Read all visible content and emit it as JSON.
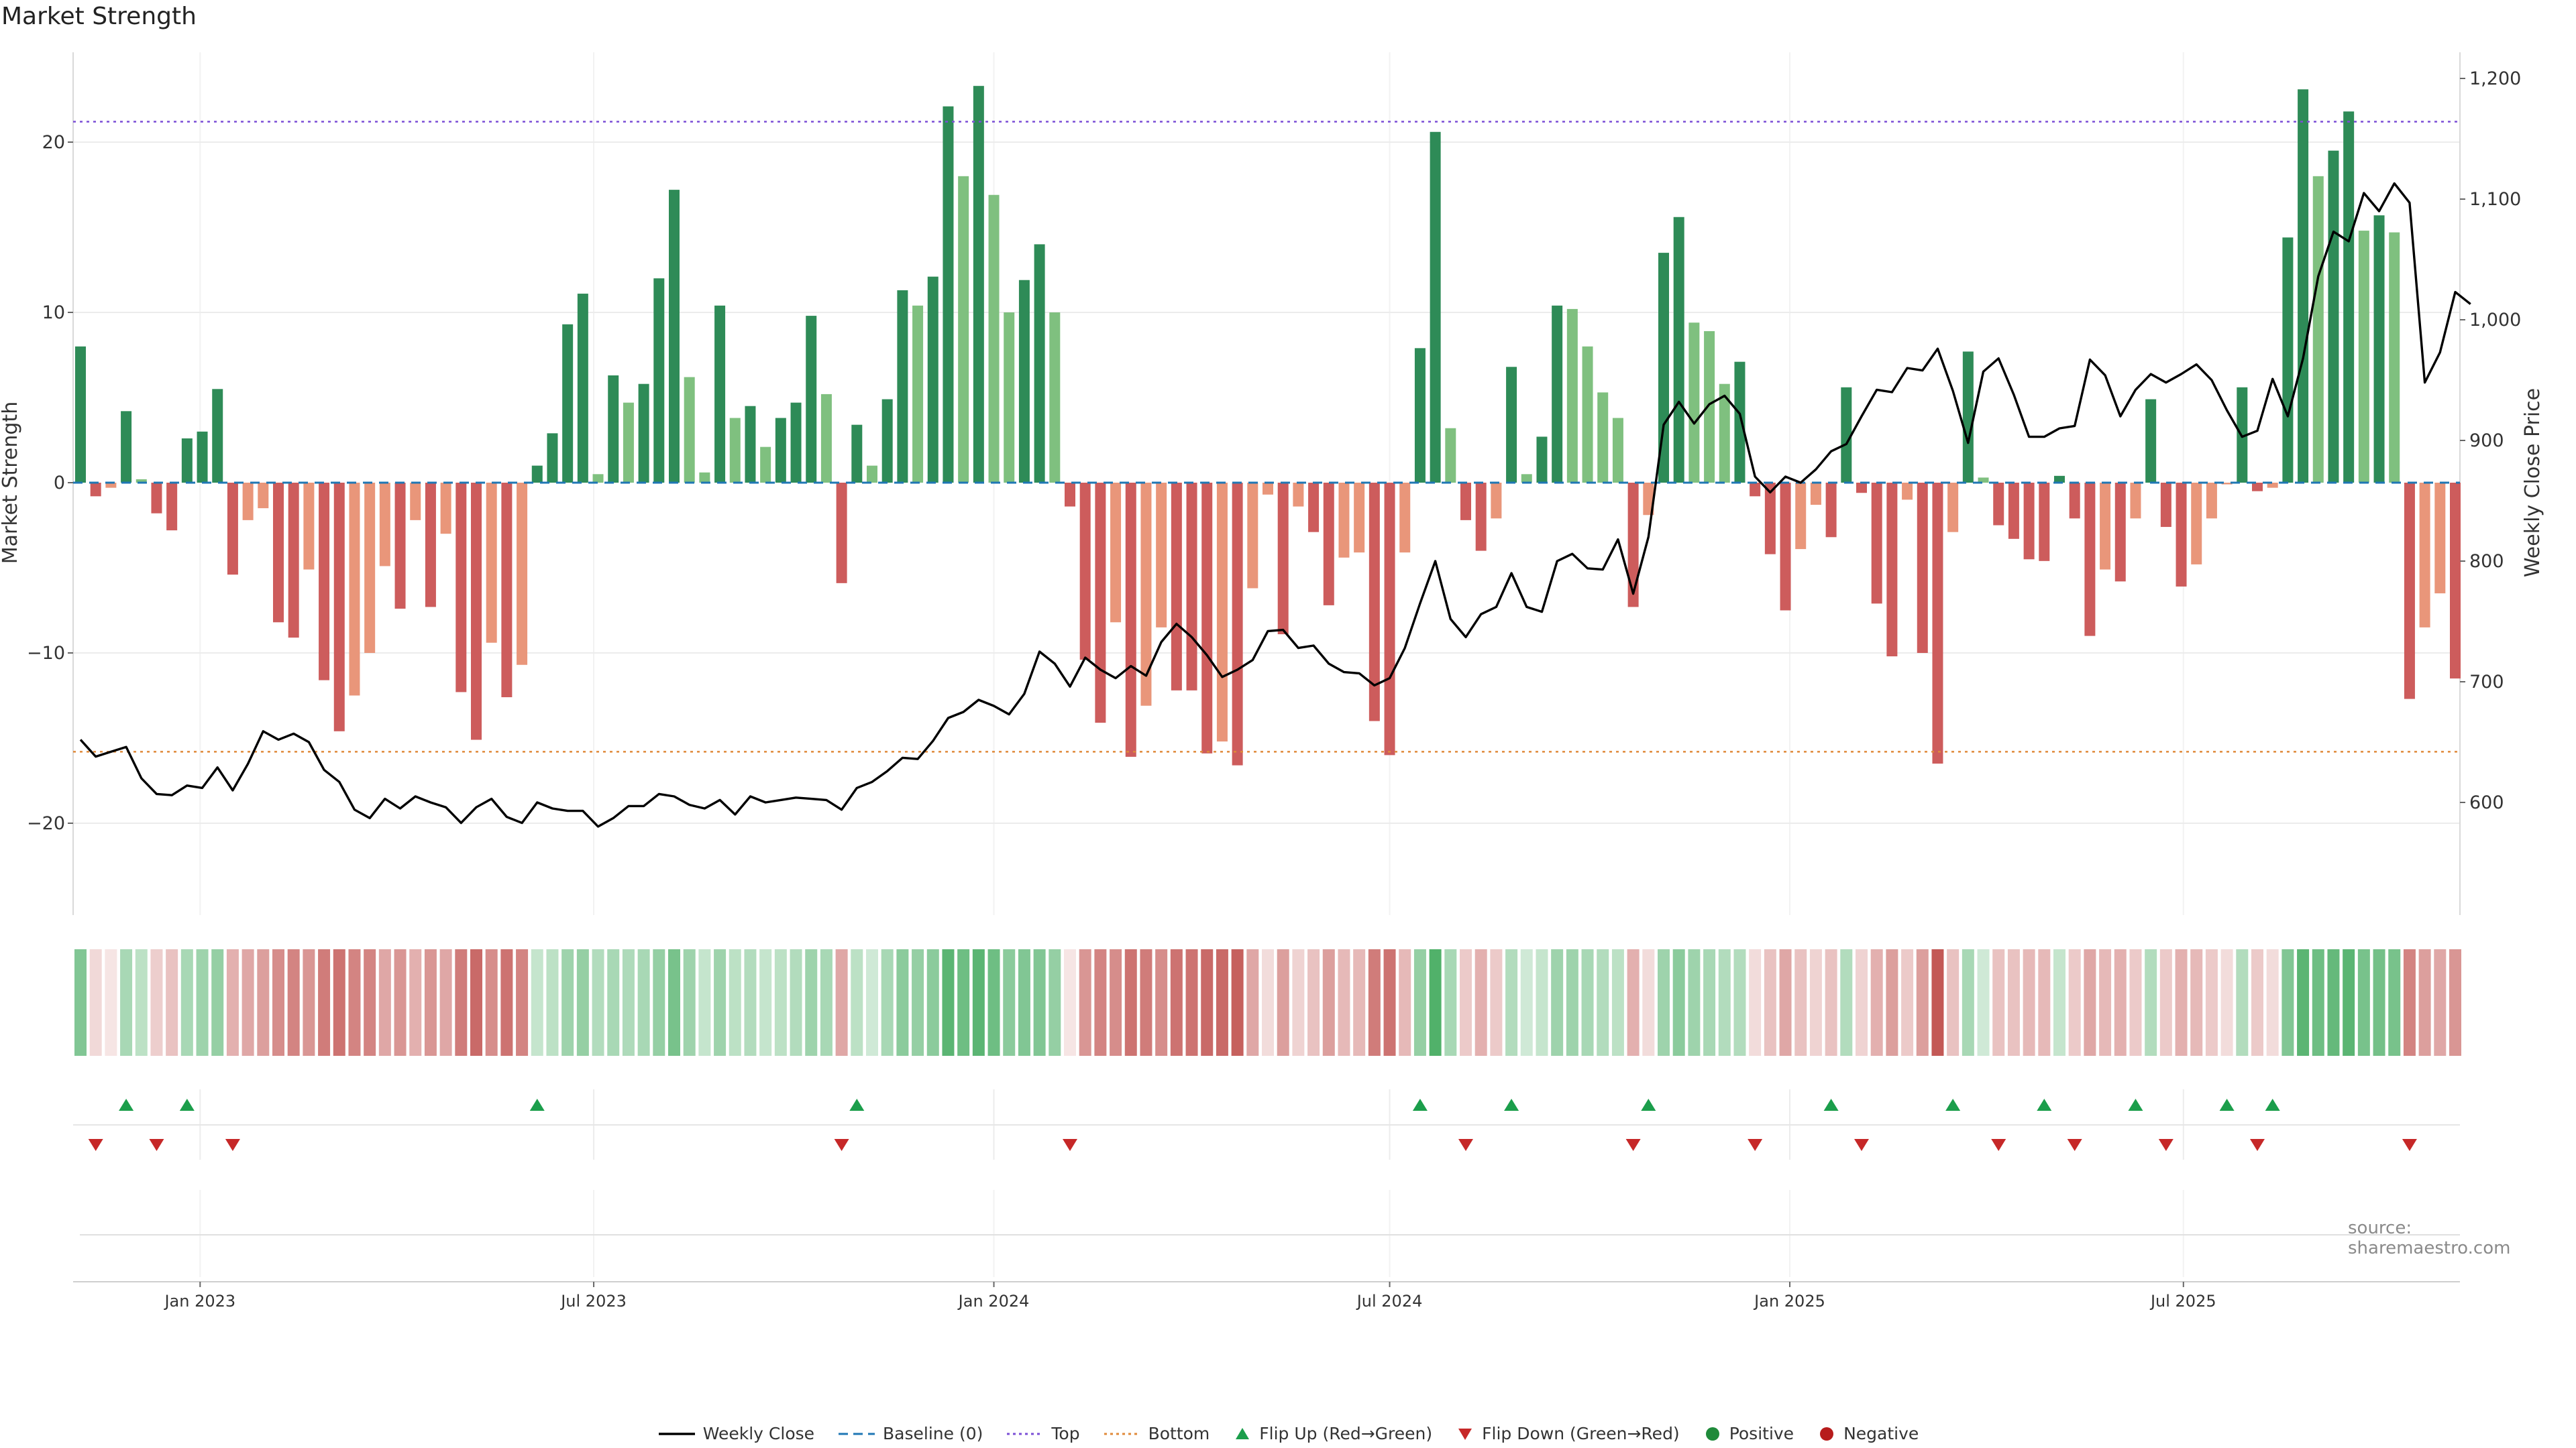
{
  "title": "Market Strength",
  "source": "source: sharemaestro.com",
  "chart_data": {
    "type": "bar",
    "start_date": "2022-11-07",
    "frequency": "weekly",
    "ylabel": "Market Strength",
    "y2label": "Weekly Close Price",
    "ylim": [
      -25,
      25
    ],
    "y_ticks": [
      -20,
      -10,
      0,
      10,
      20
    ],
    "y2lim": [
      510,
      1215
    ],
    "y2_ticks": [
      600,
      700,
      800,
      900,
      1000,
      1100,
      1200
    ],
    "y2_tick_labels": [
      "600",
      "700",
      "800",
      "900",
      "1,000",
      "1,100",
      "1,200"
    ],
    "top_line": 21.2,
    "bottom_line": -15.8,
    "x_ticks": [
      {
        "label": "Jan 2023",
        "date": "2023-01-01"
      },
      {
        "label": "Jul 2023",
        "date": "2023-07-01"
      },
      {
        "label": "Jan 2024",
        "date": "2024-01-01"
      },
      {
        "label": "Jul 2024",
        "date": "2024-07-01"
      },
      {
        "label": "Jan 2025",
        "date": "2025-01-01"
      },
      {
        "label": "Jul 2025",
        "date": "2025-07-01"
      }
    ],
    "grid": true,
    "legend_position": "bottom",
    "strength_values": [
      8,
      -0.8,
      -0.3,
      4.2,
      0.2,
      -1.8,
      -2.8,
      2.6,
      3,
      5.5,
      -5.4,
      -2.2,
      -1.5,
      -8.2,
      -9.1,
      -5.1,
      -11.6,
      -14.6,
      -12.5,
      -10,
      -4.9,
      -7.4,
      -2.2,
      -7.3,
      -3,
      -12.3,
      -15.1,
      -9.4,
      -12.6,
      -10.7,
      1,
      2.9,
      9.3,
      11.1,
      0.5,
      6.3,
      4.7,
      5.8,
      12,
      17.2,
      6.2,
      0.6,
      10.4,
      3.8,
      4.5,
      2.1,
      3.8,
      4.7,
      9.8,
      5.2,
      -5.9,
      3.4,
      1,
      4.9,
      11.3,
      10.4,
      12.1,
      22.1,
      18,
      23.3,
      16.9,
      10,
      11.9,
      14,
      10,
      -1.4,
      -10.4,
      -14.1,
      -8.2,
      -16.1,
      -13.1,
      -8.5,
      -12.2,
      -12.2,
      -15.9,
      -15.2,
      -16.6,
      -6.2,
      -0.7,
      -8.9,
      -1.4,
      -2.9,
      -7.2,
      -4.4,
      -4.1,
      -14,
      -16,
      -4.1,
      7.9,
      20.6,
      3.2,
      -2.2,
      -4,
      -2.1,
      6.8,
      0.5,
      2.7,
      10.4,
      10.2,
      8,
      5.3,
      3.8,
      -7.3,
      -1.9,
      13.5,
      15.6,
      9.4,
      8.9,
      5.8,
      7.1,
      -0.8,
      -4.2,
      -7.5,
      -3.9,
      -1.3,
      -3.2,
      5.6,
      -0.6,
      -7.1,
      -10.2,
      -1,
      -10,
      -16.5,
      -2.9,
      7.7,
      0.3,
      -2.5,
      -3.3,
      -4.5,
      -4.6,
      0.4,
      -2.1,
      -9,
      -5.1,
      -5.8,
      -2.1,
      4.9,
      -2.6,
      -6.1,
      -4.8,
      -2.1,
      -0.1,
      5.6,
      -0.5,
      -0.3,
      14.4,
      23.1,
      18,
      19.5,
      21.8,
      14.8,
      15.7,
      14.7,
      -12.7,
      -8.5,
      -6.5,
      -11.5
    ],
    "weekly_close": [
      652,
      638,
      642,
      646,
      620,
      607,
      606,
      614,
      612,
      629,
      610,
      632,
      659,
      652,
      657,
      650,
      627,
      617,
      594,
      587,
      603,
      595,
      605,
      600,
      596,
      583,
      596,
      603,
      588,
      583,
      600,
      595,
      593,
      593,
      580,
      587,
      597,
      597,
      607,
      605,
      598,
      595,
      602,
      590,
      605,
      600,
      602,
      604,
      603,
      602,
      594,
      612,
      617,
      626,
      637,
      636,
      651,
      670,
      675,
      685,
      680,
      673,
      690,
      725,
      715,
      696,
      720,
      710,
      703,
      713,
      705,
      733,
      748,
      737,
      722,
      704,
      710,
      718,
      742,
      743,
      728,
      730,
      715,
      708,
      707,
      697,
      703,
      728,
      765,
      800,
      752,
      737,
      756,
      762,
      790,
      762,
      758,
      800,
      806,
      794,
      793,
      818,
      773,
      820,
      913,
      932,
      914,
      930,
      937,
      922,
      870,
      857,
      870,
      865,
      876,
      891,
      897,
      920,
      942,
      940,
      960,
      958,
      976,
      941,
      898,
      957,
      968,
      938,
      903,
      903,
      910,
      912,
      967,
      954,
      920,
      942,
      955,
      948,
      955,
      963,
      950,
      925,
      903,
      908,
      951,
      920,
      968,
      1036,
      1073,
      1065,
      1105,
      1090,
      1113,
      1097,
      948,
      973,
      1023,
      1013
    ],
    "heat_strip": [
      0.65,
      0.22,
      0.12,
      0.45,
      0.35,
      0.28,
      0.35,
      0.45,
      0.5,
      0.55,
      0.45,
      0.5,
      0.55,
      0.65,
      0.7,
      0.6,
      0.75,
      0.8,
      0.7,
      0.7,
      0.5,
      0.6,
      0.45,
      0.6,
      0.5,
      0.75,
      0.85,
      0.65,
      0.8,
      0.7,
      0.3,
      0.35,
      0.5,
      0.55,
      0.4,
      0.45,
      0.42,
      0.45,
      0.55,
      0.7,
      0.5,
      0.3,
      0.5,
      0.35,
      0.4,
      0.3,
      0.35,
      0.4,
      0.5,
      0.45,
      0.5,
      0.35,
      0.25,
      0.45,
      0.6,
      0.55,
      0.6,
      0.85,
      0.75,
      0.85,
      0.75,
      0.6,
      0.65,
      0.65,
      0.55,
      0.15,
      0.6,
      0.7,
      0.65,
      0.8,
      0.75,
      0.65,
      0.8,
      0.8,
      0.85,
      0.85,
      0.9,
      0.5,
      0.2,
      0.55,
      0.25,
      0.35,
      0.55,
      0.4,
      0.4,
      0.75,
      0.8,
      0.4,
      0.55,
      0.9,
      0.45,
      0.3,
      0.45,
      0.3,
      0.4,
      0.25,
      0.3,
      0.5,
      0.5,
      0.45,
      0.4,
      0.35,
      0.45,
      0.2,
      0.5,
      0.6,
      0.5,
      0.45,
      0.4,
      0.4,
      0.2,
      0.35,
      0.5,
      0.35,
      0.25,
      0.35,
      0.4,
      0.25,
      0.45,
      0.55,
      0.3,
      0.55,
      0.95,
      0.35,
      0.45,
      0.25,
      0.35,
      0.35,
      0.4,
      0.4,
      0.3,
      0.3,
      0.5,
      0.4,
      0.45,
      0.3,
      0.4,
      0.3,
      0.45,
      0.4,
      0.3,
      0.2,
      0.4,
      0.3,
      0.2,
      0.65,
      0.85,
      0.75,
      0.8,
      0.85,
      0.7,
      0.72,
      0.7,
      0.7,
      0.55,
      0.5,
      0.6
    ],
    "flip_up_dates": [
      "2022-11-28",
      "2022-12-26",
      "2023-06-05",
      "2023-10-30",
      "2024-07-15",
      "2024-08-26",
      "2024-10-28",
      "2025-01-20",
      "2025-03-17",
      "2025-04-28",
      "2025-06-09",
      "2025-07-21",
      "2025-08-11"
    ],
    "flip_down_dates": [
      "2022-11-14",
      "2022-12-12",
      "2023-01-16",
      "2023-10-23",
      "2024-02-05",
      "2024-08-05",
      "2024-10-21",
      "2024-12-16",
      "2025-02-03",
      "2025-04-07",
      "2025-05-12",
      "2025-06-23",
      "2025-08-04",
      "2025-10-13"
    ],
    "legend": [
      {
        "label": "Weekly Close",
        "kind": "line",
        "color": "#000000"
      },
      {
        "label": "Baseline (0)",
        "kind": "dash",
        "color": "#1f77b4"
      },
      {
        "label": "Top",
        "kind": "dot",
        "color": "#7b4fd6"
      },
      {
        "label": "Bottom",
        "kind": "dot",
        "color": "#e08a3a"
      },
      {
        "label": "Flip Up (Red→Green)",
        "kind": "tri-up",
        "color": "#1b9e4b"
      },
      {
        "label": "Flip Down (Green→Red)",
        "kind": "tri-down",
        "color": "#c62828"
      },
      {
        "label": "Positive",
        "kind": "circle",
        "color": "#1f8a3a"
      },
      {
        "label": "Negative",
        "kind": "circle",
        "color": "#b71c1c"
      }
    ],
    "colors": {
      "pos_strong": "#2e8b57",
      "pos_weak": "#7fc07f",
      "neg_strong": "#cd5c5c",
      "neg_weak": "#e9967a",
      "heat_pos": "#3ea85a",
      "heat_neg": "#c0504d",
      "flip_up": "#1b9e4b",
      "flip_down": "#c62828",
      "baseline": "#1f77b4",
      "top": "#7b4fd6",
      "bottom": "#e08a3a"
    }
  }
}
